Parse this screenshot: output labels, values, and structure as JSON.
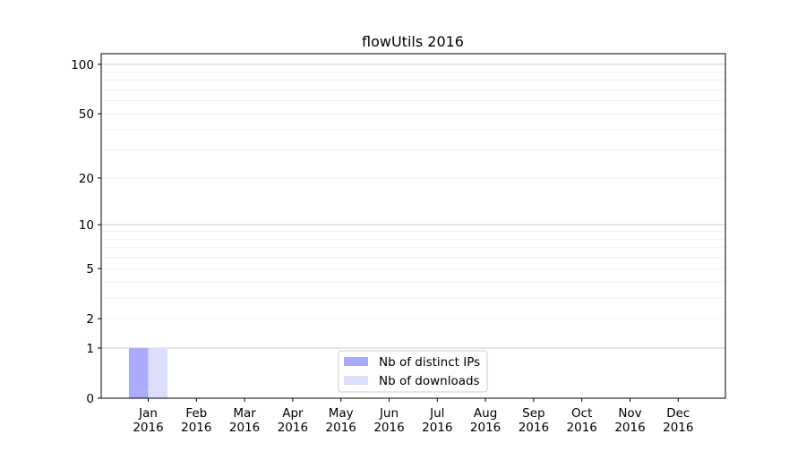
{
  "chart_data": {
    "type": "bar",
    "title": "flowUtils 2016",
    "xlabel": "",
    "ylabel": "",
    "yscale": "symlog (log of 1+y)",
    "ylim": [
      0,
      116
    ],
    "yticks": [
      0,
      1,
      2,
      5,
      10,
      20,
      50,
      100
    ],
    "ytick_labels": [
      "0",
      "1",
      "2",
      "5",
      "10",
      "20",
      "50",
      "100"
    ],
    "grid": true,
    "legend_position": "bottom-center",
    "categories": [
      "Jan\n2016",
      "Feb\n2016",
      "Mar\n2016",
      "Apr\n2016",
      "May\n2016",
      "Jun\n2016",
      "Jul\n2016",
      "Aug\n2016",
      "Sep\n2016",
      "Oct\n2016",
      "Nov\n2016",
      "Dec\n2016"
    ],
    "series": [
      {
        "name": "Nb of distinct IPs",
        "color": "#aaaaff",
        "values": [
          1,
          0,
          0,
          0,
          0,
          0,
          0,
          0,
          0,
          0,
          0,
          0
        ]
      },
      {
        "name": "Nb of downloads",
        "color": "#ddddff",
        "values": [
          1,
          0,
          0,
          0,
          0,
          0,
          0,
          0,
          0,
          0,
          0,
          0
        ]
      }
    ]
  }
}
